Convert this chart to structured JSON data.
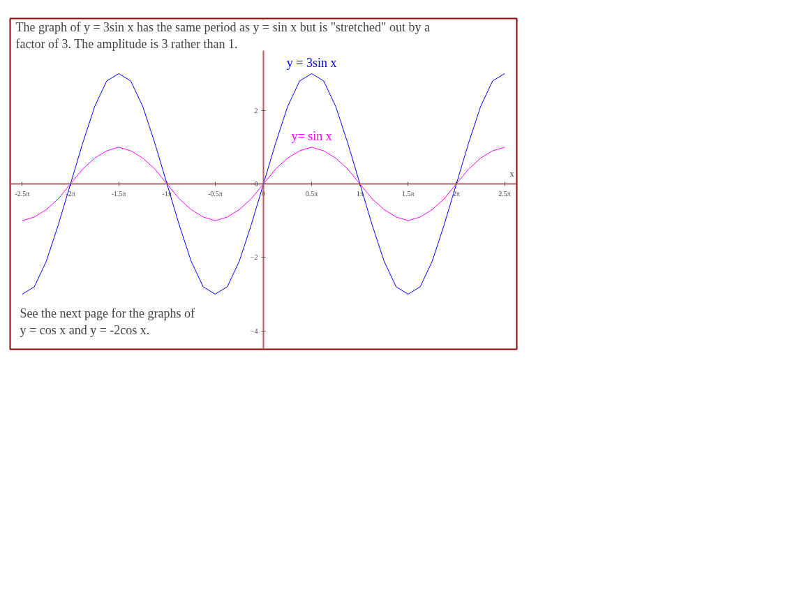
{
  "chart_data": {
    "type": "line",
    "annotations": [
      "The graph of y = 3sin x has the same period as y = sin x but is \"stretched\" out by a factor of 3.  The amplitude is 3 rather than  1.",
      "See the next page for the graphs of y = cos x and y = -2cos x."
    ],
    "xlabel": "x",
    "x": [
      -7.854,
      -7.461,
      -7.069,
      -6.676,
      -6.283,
      -5.89,
      -5.498,
      -5.105,
      -4.712,
      -4.32,
      -3.927,
      -3.534,
      -3.142,
      -2.749,
      -2.356,
      -1.963,
      -1.571,
      -1.178,
      -0.785,
      -0.393,
      0,
      0.393,
      0.785,
      1.178,
      1.571,
      1.963,
      2.356,
      2.749,
      3.142,
      3.534,
      3.927,
      4.32,
      4.712,
      5.105,
      5.498,
      5.89,
      6.283,
      6.676,
      7.069,
      7.461,
      7.854
    ],
    "series": [
      {
        "name": "y = 3sin x",
        "color": "#0000ff",
        "values": [
          -3,
          -2.8,
          -2.1,
          -1.1,
          0,
          1.1,
          2.1,
          2.8,
          3,
          2.8,
          2.1,
          1.1,
          0,
          -1.1,
          -2.1,
          -2.8,
          -3,
          -2.8,
          -2.1,
          -1.1,
          0,
          1.1,
          2.1,
          2.8,
          3,
          2.8,
          2.1,
          1.1,
          0,
          -1.1,
          -2.1,
          -2.8,
          -3,
          -2.8,
          -2.1,
          -1.1,
          0,
          1.1,
          2.1,
          2.8,
          3
        ]
      },
      {
        "name": "y= sin x",
        "color": "#ff00ff",
        "values": [
          -1,
          -0.9,
          -0.7,
          -0.4,
          0,
          0.4,
          0.7,
          0.9,
          1,
          0.9,
          0.7,
          0.4,
          0,
          -0.4,
          -0.7,
          -0.9,
          -1,
          -0.9,
          -0.7,
          -0.4,
          0,
          0.4,
          0.7,
          0.9,
          1,
          0.9,
          0.7,
          0.4,
          0,
          -0.4,
          -0.7,
          -0.9,
          -1,
          -0.9,
          -0.7,
          -0.4,
          0,
          0.4,
          0.7,
          0.9,
          1
        ]
      }
    ],
    "xlim": [
      -8.25,
      8.25
    ],
    "ylim": [
      -4.5,
      4.5
    ],
    "xticks": [
      {
        "value": -7.854,
        "label": "-2.5π"
      },
      {
        "value": -6.283,
        "label": "-2π"
      },
      {
        "value": -4.712,
        "label": "-1.5π"
      },
      {
        "value": -3.142,
        "label": "-1π"
      },
      {
        "value": -1.571,
        "label": "-0.5π"
      },
      0,
      {
        "value": 1.571,
        "label": "0.5π"
      },
      {
        "value": 3.142,
        "label": "1π"
      },
      {
        "value": 4.712,
        "label": "1.5π"
      },
      {
        "value": 6.283,
        "label": "2π"
      },
      {
        "value": 7.854,
        "label": "2.5π"
      }
    ],
    "yticks": [
      -4,
      -2,
      0,
      2
    ],
    "grid": false,
    "marker": "none",
    "line_style": "solid"
  }
}
